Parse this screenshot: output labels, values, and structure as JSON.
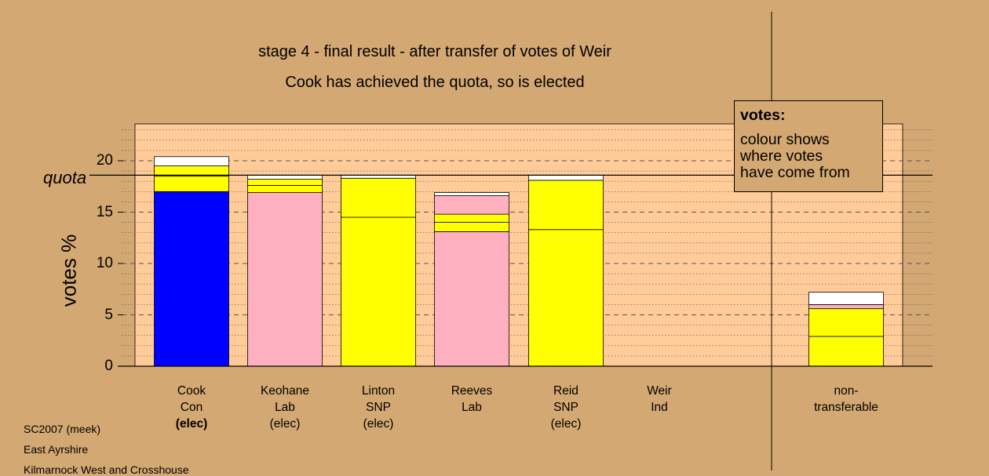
{
  "titles": {
    "line1": "stage 4 - final result - after transfer of votes of Weir",
    "line2": "Cook has achieved the quota, so is elected"
  },
  "legend": {
    "heading": "votes:",
    "lines": [
      "colour shows",
      "where votes",
      "have come from"
    ]
  },
  "quota_label": "quota",
  "footer": [
    "SC2007 (meek)",
    "East Ayrshire",
    "Kilmarnock West and Crosshouse"
  ],
  "colors": {
    "background": "#d4a873",
    "plot": "#ffcc99",
    "Con": "#0000ff",
    "Lab": "#ffb0c0",
    "SNP": "#ffff00",
    "other": "#ffffff"
  },
  "candidates": [
    {
      "name": "Cook",
      "party": "Con",
      "status": "(elec)",
      "bold": true
    },
    {
      "name": "Keohane",
      "party": "Lab",
      "status": "(elec)",
      "bold": false
    },
    {
      "name": "Linton",
      "party": "SNP",
      "status": "(elec)",
      "bold": false
    },
    {
      "name": "Reeves",
      "party": "Lab",
      "status": "",
      "bold": false
    },
    {
      "name": "Reid",
      "party": "SNP",
      "status": "(elec)",
      "bold": false
    },
    {
      "name": "Weir",
      "party": "Ind",
      "status": "",
      "bold": false
    },
    {
      "name": "non-",
      "party": "transferable",
      "status": "",
      "bold": false
    }
  ],
  "chart_data": {
    "type": "bar",
    "stacked": true,
    "title": "stage 4 - final result - after transfer of votes of Weir",
    "subtitle": "Cook has achieved the quota, so is elected",
    "xlabel": "",
    "ylabel": "votes %",
    "ylim": [
      0,
      23.5
    ],
    "yticks": [
      0,
      5,
      10,
      15,
      20
    ],
    "quota": 18.6,
    "grid": true,
    "categories": [
      "Cook",
      "Keohane",
      "Linton",
      "Reeves",
      "Reid",
      "Weir",
      "non-transferable"
    ],
    "bars": [
      {
        "category": "Cook",
        "segments": [
          {
            "value": 17.0,
            "color": "Con"
          },
          {
            "value": 1.5,
            "color": "SNP"
          },
          {
            "value": 1.0,
            "color": "SNP"
          },
          {
            "value": 0.9,
            "color": "other"
          }
        ]
      },
      {
        "category": "Keohane",
        "segments": [
          {
            "value": 16.9,
            "color": "Lab"
          },
          {
            "value": 0.7,
            "color": "SNP"
          },
          {
            "value": 0.6,
            "color": "SNP"
          },
          {
            "value": 0.4,
            "color": "other"
          }
        ]
      },
      {
        "category": "Linton",
        "segments": [
          {
            "value": 14.5,
            "color": "SNP"
          },
          {
            "value": 3.8,
            "color": "SNP"
          },
          {
            "value": 0.3,
            "color": "other"
          }
        ]
      },
      {
        "category": "Reeves",
        "segments": [
          {
            "value": 13.1,
            "color": "Lab"
          },
          {
            "value": 0.9,
            "color": "SNP"
          },
          {
            "value": 0.8,
            "color": "SNP"
          },
          {
            "value": 1.8,
            "color": "Lab"
          },
          {
            "value": 0.3,
            "color": "other"
          }
        ]
      },
      {
        "category": "Reid",
        "segments": [
          {
            "value": 13.3,
            "color": "SNP"
          },
          {
            "value": 4.8,
            "color": "SNP"
          },
          {
            "value": 0.5,
            "color": "other"
          }
        ]
      },
      {
        "category": "Weir",
        "segments": []
      },
      {
        "category": "non-transferable",
        "segments": [
          {
            "value": 2.9,
            "color": "SNP"
          },
          {
            "value": 2.7,
            "color": "SNP"
          },
          {
            "value": 0.4,
            "color": "Lab"
          },
          {
            "value": 1.2,
            "color": "other"
          }
        ]
      }
    ]
  }
}
